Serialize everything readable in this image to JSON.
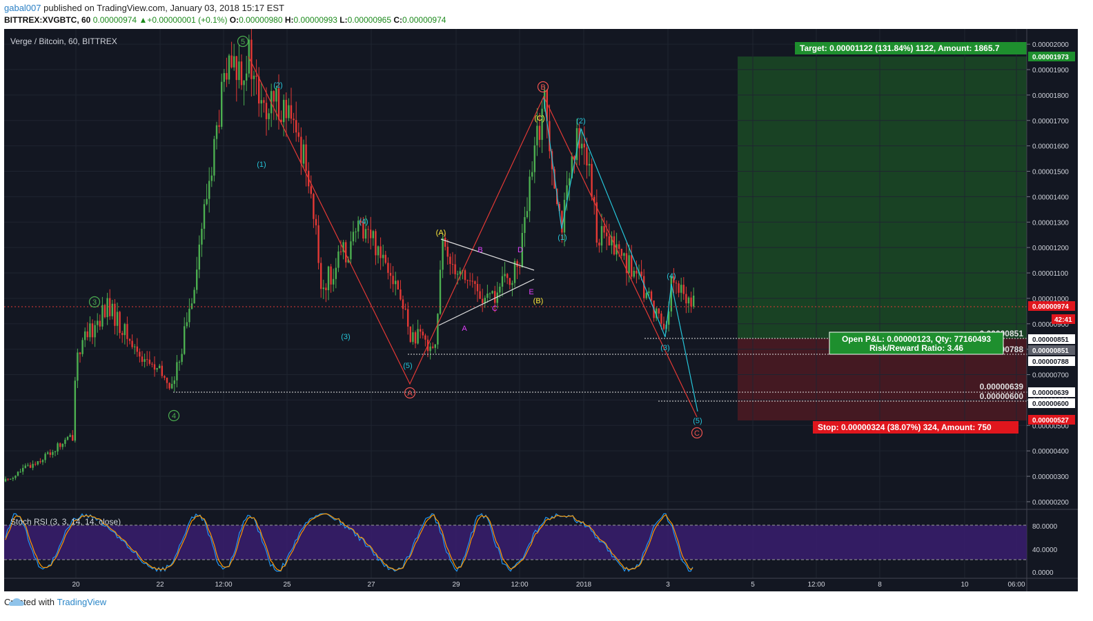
{
  "header": {
    "publisher": "gabal007",
    "published_text": "published on TradingView.com, January 03, 2018 15:17 EST",
    "symbol_line": "BITTREX:XVGBTC, 60",
    "last_price": "0.00000974",
    "change_arrow": "▲",
    "change": "+0.00000001 (+0.1%)",
    "o_label": "O:",
    "o_value": "0.00000980",
    "h_label": "H:",
    "h_value": "0.00000993",
    "l_label": "L:",
    "l_value": "0.00000965",
    "c_label": "C:",
    "c_value": "0.00000974"
  },
  "chart": {
    "title": "Verge / Bitcoin, 60, BITTREX",
    "price_ticks": [
      "0.00002000",
      "0.00001900",
      "0.00001800",
      "0.00001700",
      "0.00001600",
      "0.00001500",
      "0.00001400",
      "0.00001300",
      "0.00001200",
      "0.00001100",
      "0.00001000",
      "0.00000900",
      "0.00000800",
      "0.00000700",
      "0.00000600",
      "0.00000500",
      "0.00000400",
      "0.00000300",
      "0.00000200"
    ],
    "time_ticks": [
      "20",
      "22",
      "12:00",
      "25",
      "27",
      "29",
      "12:00",
      "2018",
      "3",
      "5",
      "12:00",
      "8",
      "10",
      "06:00"
    ],
    "target_label": "Target: 0.00001122 (131.84%) 1122, Amount: 1865.7",
    "stop_label": "Stop: 0.00000324 (38.07%) 324, Amount: 750",
    "pnl_line1": "Open P&L: 0.00000123, Qty: 77160493",
    "pnl_line2": "Risk/Reward Ratio: 3.46",
    "level_labels": [
      "0.00000851",
      "0.00000788",
      "0.00000639",
      "0.00000600"
    ],
    "axis_badges": {
      "target": "0.00001973",
      "current": "0.00000974",
      "countdown": "42:41",
      "entry": "0.00000851",
      "entry_plain": "0.00000851",
      "level788": "0.00000788",
      "level639": "0.00000639",
      "level600": "0.00000600",
      "stop": "0.00000527"
    },
    "colors": {
      "background": "#131722",
      "bull": "#4caf50",
      "bear": "#e53935",
      "target_zone": "#1b4a25",
      "stop_zone": "#4d1a22",
      "elliott_major": "#4caf50",
      "elliott_minor": "#26c6da",
      "abc": "#ffeb3b",
      "triangle": "#e040fb",
      "red_wave": "#ef5350"
    }
  },
  "annotations": {
    "primary": [
      "5",
      "3",
      "4"
    ],
    "minor": [
      "(1)",
      "(2)",
      "(3)",
      "(4)",
      "(5)",
      "(1)",
      "(2)",
      "(3)",
      "(4)",
      "(5)"
    ],
    "corrective": [
      "(A)",
      "(B)",
      "(C)"
    ],
    "triangle": [
      "A",
      "B",
      "C",
      "D",
      "E"
    ],
    "abc_red": [
      "A",
      "B",
      "C"
    ]
  },
  "oscillator": {
    "title": "Stoch RSI (3, 3, 14, 14, close)",
    "ticks": [
      "80.0000",
      "40.0000",
      "0.0000"
    ],
    "upper_band": 80,
    "lower_band": 20
  },
  "footer": {
    "created_with": "Created with",
    "brand": "TradingView"
  },
  "chart_data": {
    "type": "candlestick",
    "title": "Verge / Bitcoin, 60, BITTREX",
    "symbol": "BITTREX:XVGBTC",
    "interval": "60",
    "y_axis": {
      "min": 1.7e-06,
      "max": 2.06e-05,
      "unit": "BTC"
    },
    "price_path": [
      [
        "Dec 18 12:00",
        2.8e-06
      ],
      [
        "Dec 19 06:00",
        3.8e-06
      ],
      [
        "Dec 19 18:00",
        4.6e-06
      ],
      [
        "Dec 20 00:00",
        7.8e-06
      ],
      [
        "Dec 20 18:00",
        9.7e-06
      ],
      [
        "Dec 21 12:00",
        8e-06
      ],
      [
        "Dec 22 12:00",
        6.5e-06
      ],
      [
        "Dec 23 00:00",
        9.8e-06
      ],
      [
        "Dec 23 12:00",
        1.87e-05
      ],
      [
        "Dec 24 00:00",
        1.94e-05
      ],
      [
        "Dec 24 06:00",
        1.72e-05
      ],
      [
        "Dec 25 00:00",
        1.78e-05
      ],
      [
        "Dec 25 18:00",
        1.53e-05
      ],
      [
        "Dec 26 06:00",
        1.04e-05
      ],
      [
        "Dec 27 00:00",
        1.29e-05
      ],
      [
        "Dec 27 12:00",
        1.13e-05
      ],
      [
        "Dec 28 12:00",
        8.5e-06
      ],
      [
        "Dec 29 00:00",
        8.2e-06
      ],
      [
        "Dec 29 06:00",
        1.2e-05
      ],
      [
        "Dec 30 00:00",
        9.8e-06
      ],
      [
        "Dec 30 18:00",
        1.12e-05
      ],
      [
        "Dec 31 12:00",
        1.8e-05
      ],
      [
        "Dec 31 18:00",
        1.29e-05
      ],
      [
        "Jan 01 00:00",
        1.69e-05
      ],
      [
        "Jan 01 12:00",
        1.25e-05
      ],
      [
        "Jan 02 06:00",
        1.16e-05
      ],
      [
        "Jan 02 18:00",
        8.8e-06
      ],
      [
        "Jan 03 06:00",
        1.06e-05
      ],
      [
        "Jan 03 15:00",
        9.7e-06
      ]
    ],
    "position": {
      "entry": 8.51e-06,
      "target": 1.973e-05,
      "stop": 5.27e-06,
      "target_pct": 131.84,
      "stop_pct": 38.07,
      "risk_reward": 3.46
    },
    "horizontal_levels": [
      8.51e-06,
      7.88e-06,
      6.39e-06,
      6e-06
    ],
    "current_price": 9.74e-06
  }
}
